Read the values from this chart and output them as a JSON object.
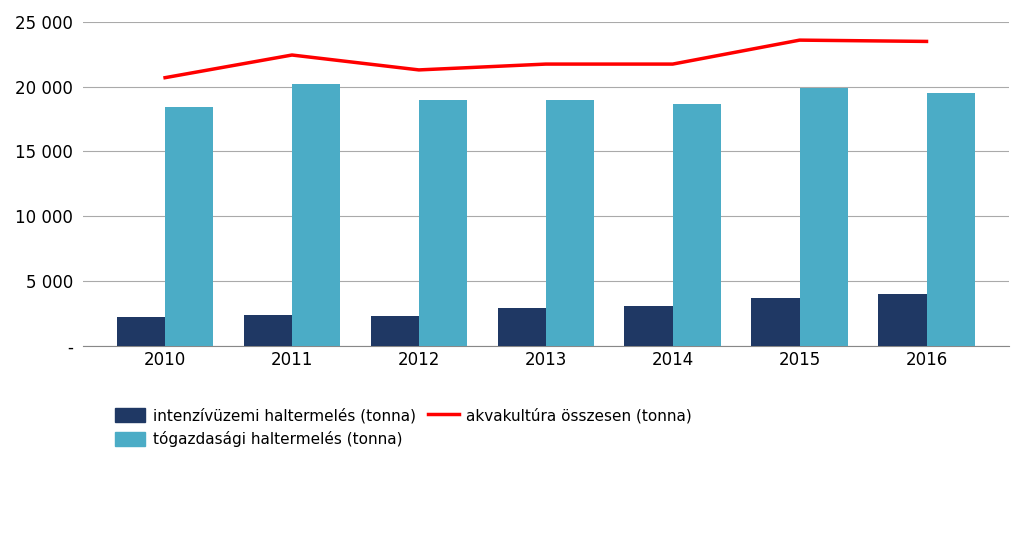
{
  "years": [
    2010,
    2011,
    2012,
    2013,
    2014,
    2015,
    2016
  ],
  "intenziv": [
    2200,
    2350,
    2300,
    2900,
    3050,
    3650,
    4000
  ],
  "togazdasagi": [
    18400,
    20200,
    19000,
    18950,
    18700,
    19900,
    19500
  ],
  "akvakultúra": [
    20700,
    22450,
    21300,
    21750,
    21750,
    23600,
    23500
  ],
  "bar_width": 0.38,
  "intenziv_color": "#1F3864",
  "togazdasagi_color": "#4BACC6",
  "akvakultúra_color": "#FF0000",
  "ylim": [
    0,
    25000
  ],
  "yticks": [
    0,
    5000,
    10000,
    15000,
    20000,
    25000
  ],
  "ytick_labels": [
    "-",
    "5 000",
    "10 000",
    "15 000",
    "20 000",
    "25 000"
  ],
  "legend_intenziv": "intenzívüzemi haltermelés (tonna)",
  "legend_togazdasagi": "tógazdasági haltermelés (tonna)",
  "legend_akvakultúra": "akvakultúra összesen (tonna)",
  "background_color": "#FFFFFF",
  "grid_color": "#AAAAAA"
}
